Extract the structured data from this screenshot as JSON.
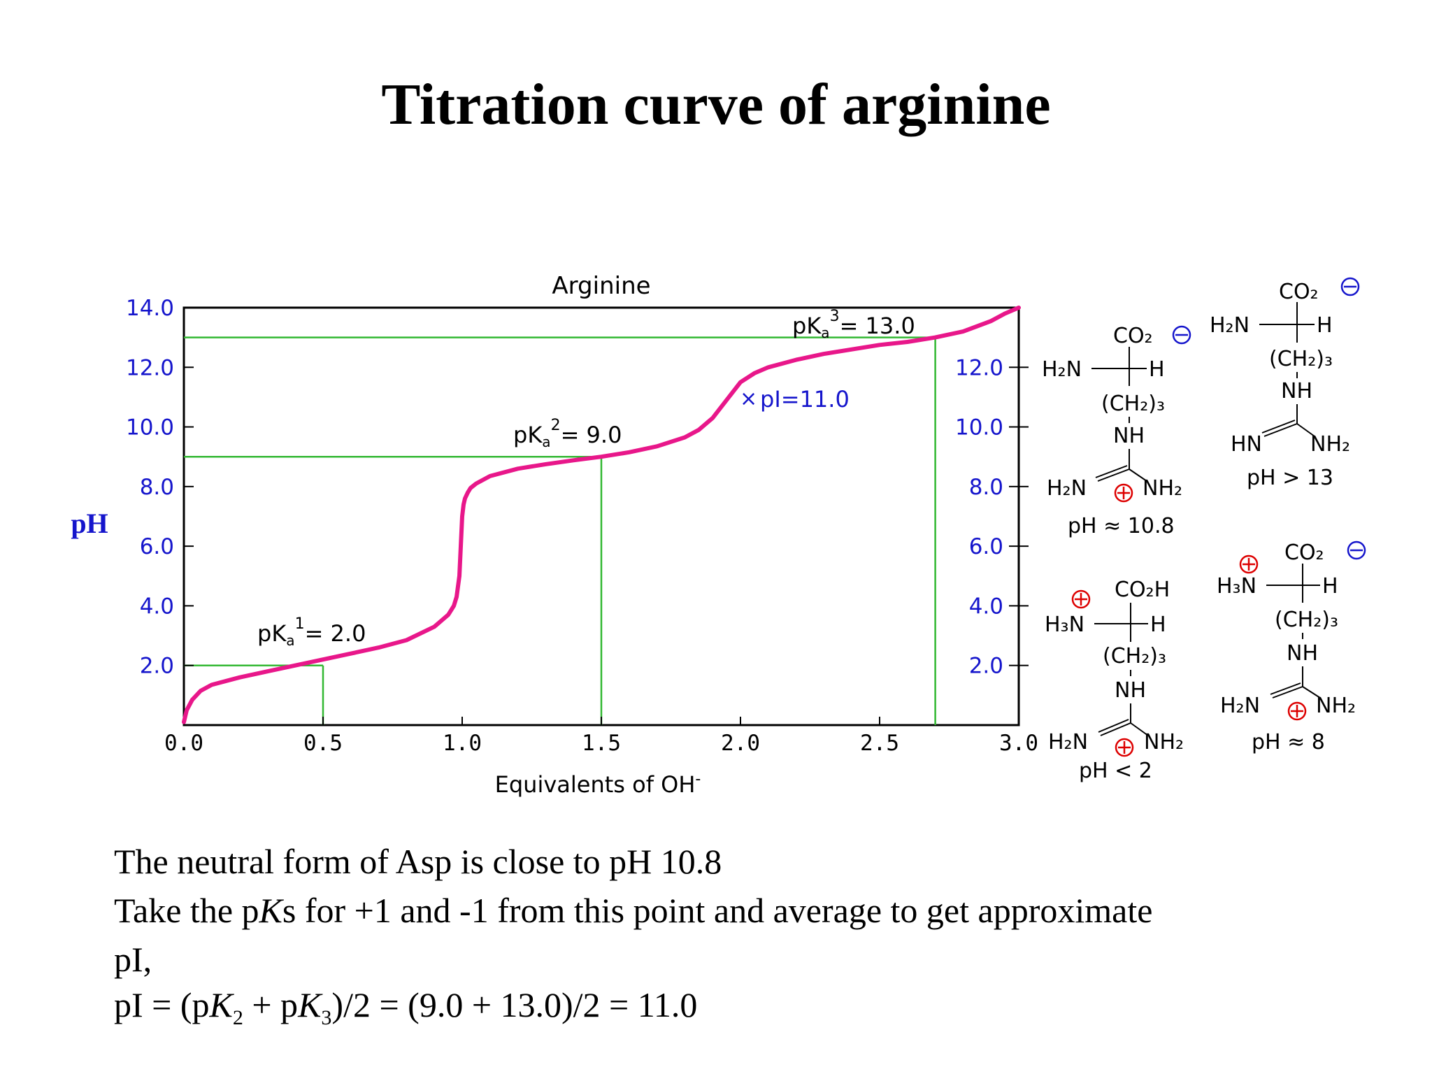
{
  "title": "Titration curve of arginine",
  "chart_data": {
    "type": "line",
    "title": "Arginine",
    "xlabel": "Equivalents of OH",
    "xlabel_sup": "-",
    "ylabel": "pH",
    "xlim": [
      0,
      3
    ],
    "ylim": [
      0,
      14
    ],
    "x_ticks": [
      "0.0",
      "0.5",
      "1.0",
      "1.5",
      "2.0",
      "2.5",
      "3.0"
    ],
    "y_ticks_left": [
      "2.0",
      "4.0",
      "6.0",
      "8.0",
      "10.0",
      "12.0",
      "14.0"
    ],
    "y_ticks_inner": [
      "2.0",
      "4.0",
      "6.0",
      "8.0",
      "10.0",
      "12.0"
    ],
    "grid": false,
    "colors": {
      "curve": "#e8178a",
      "guides": "#33b833",
      "ticks": "#1515cc",
      "charge": "#dd0000"
    },
    "series": [
      {
        "x": [
          0.0,
          0.01,
          0.03,
          0.06,
          0.1,
          0.2,
          0.3,
          0.4,
          0.5,
          0.6,
          0.7,
          0.8,
          0.9,
          0.95,
          0.97,
          0.98,
          0.99,
          0.995,
          1.0,
          1.005,
          1.01,
          1.02,
          1.03,
          1.05,
          1.1,
          1.2,
          1.3,
          1.4,
          1.5,
          1.6,
          1.7,
          1.8,
          1.85,
          1.9,
          1.95,
          2.0,
          2.05,
          2.1,
          2.2,
          2.3,
          2.4,
          2.5,
          2.6,
          2.7,
          2.8,
          2.9,
          2.95,
          3.0
        ],
        "y": [
          0.1,
          0.5,
          0.85,
          1.15,
          1.35,
          1.6,
          1.8,
          2.0,
          2.2,
          2.4,
          2.6,
          2.85,
          3.3,
          3.7,
          4.0,
          4.3,
          5.0,
          6.0,
          7.0,
          7.4,
          7.6,
          7.8,
          7.95,
          8.1,
          8.35,
          8.6,
          8.75,
          8.88,
          9.0,
          9.15,
          9.35,
          9.65,
          9.9,
          10.3,
          10.9,
          11.5,
          11.8,
          12.0,
          12.25,
          12.45,
          12.6,
          12.75,
          12.85,
          13.0,
          13.2,
          13.55,
          13.8,
          14.0
        ]
      }
    ],
    "annotations": [
      {
        "text_main": "pK",
        "sub": "a",
        "sup": "1",
        "rest": "= 2.0"
      },
      {
        "text_main": "pK",
        "sub": "a",
        "sup": "2",
        "rest": "= 9.0"
      },
      {
        "text_main": "pK",
        "sub": "a",
        "sup": "3",
        "rest": "= 13.0"
      },
      {
        "marker": "×",
        "text": "pI=11.0"
      }
    ],
    "guides": [
      {
        "x": 0.5,
        "y": 2.0
      },
      {
        "x": 1.5,
        "y": 9.0
      },
      {
        "x": 2.7,
        "y": 13.0
      }
    ],
    "pi_point": {
      "x": 2.03,
      "y": 11.0
    }
  },
  "structures": {
    "s1": {
      "co2": "CO₂",
      "h2n": "H₂N",
      "h": "H",
      "ch2": "(CH₂)₃",
      "nh": "NH",
      "left": "H₂N",
      "right": "NH₂",
      "ph": "pH ≈ 10.8"
    },
    "s2": {
      "co2": "CO₂",
      "h2n": "H₂N",
      "h": "H",
      "ch2": "(CH₂)₃",
      "nh": "NH",
      "left": "HN",
      "right": "NH₂",
      "ph": "pH > 13"
    },
    "s3": {
      "co2": "CO₂H",
      "h2n": "H₃N",
      "h": "H",
      "ch2": "(CH₂)₃",
      "nh": "NH",
      "left": "H₂N",
      "right": "NH₂",
      "ph": "pH < 2"
    },
    "s4": {
      "co2": "CO₂",
      "h2n": "H₃N",
      "h": "H",
      "ch2": "(CH₂)₃",
      "nh": "NH",
      "left": "H₂N",
      "right": "NH₂",
      "ph": "pH ≈ 8"
    }
  },
  "caption": {
    "line1": "The neutral form of Asp is close to pH 10.8",
    "line2a": "Take the p",
    "line2b": "K",
    "line2c": "s for +1 and -1 from this point and average to get approximate",
    "line3": "pI,",
    "line4a": "pI = (p",
    "line4b": "K",
    "line4c": "2",
    "line4d": " + p",
    "line4e": "K",
    "line4f": "3",
    "line4g": ")/2 = (9.0 + 13.0)/2 = 11.0"
  }
}
